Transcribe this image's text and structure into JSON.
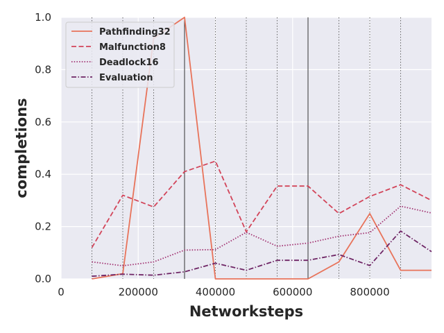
{
  "chart_data": {
    "type": "line",
    "title": "",
    "xlabel": "Networksteps",
    "ylabel": "completions",
    "xlim": [
      0,
      960000
    ],
    "ylim": [
      0,
      1.0
    ],
    "xticks": [
      0,
      200000,
      400000,
      600000,
      800000
    ],
    "xtick_labels": [
      "0",
      "200000",
      "400000",
      "600000",
      "800000"
    ],
    "yticks": [
      0.0,
      0.2,
      0.4,
      0.6,
      0.8,
      1.0
    ],
    "ytick_labels": [
      "0.0",
      "0.2",
      "0.4",
      "0.6",
      "0.8",
      "1.0"
    ],
    "grid": true,
    "legend_position": "top-left",
    "vlines_dotted": [
      80000,
      160000,
      240000,
      320000,
      400000,
      480000,
      560000,
      640000,
      720000,
      800000,
      880000
    ],
    "vlines_solid": [
      320000,
      640000
    ],
    "series": [
      {
        "name": "Pathfinding32",
        "color": "#e8735a",
        "dash": "solid",
        "x": [
          80000,
          160000,
          240000,
          320000,
          400000,
          480000,
          560000,
          640000,
          720000,
          800000,
          880000,
          960000
        ],
        "values": [
          0.0,
          0.02,
          0.92,
          1.0,
          0.0,
          0.0,
          0.0,
          0.0,
          0.065,
          0.25,
          0.033,
          0.033
        ]
      },
      {
        "name": "Malfunction8",
        "color": "#d24459",
        "dash": "dashed",
        "x": [
          80000,
          160000,
          240000,
          320000,
          400000,
          480000,
          560000,
          640000,
          720000,
          800000,
          880000,
          960000
        ],
        "values": [
          0.12,
          0.32,
          0.275,
          0.41,
          0.45,
          0.18,
          0.355,
          0.355,
          0.25,
          0.315,
          0.36,
          0.3
        ]
      },
      {
        "name": "Deadlock16",
        "color": "#a13070",
        "dash": "dotted",
        "x": [
          80000,
          160000,
          240000,
          320000,
          400000,
          480000,
          560000,
          640000,
          720000,
          800000,
          880000,
          960000
        ],
        "values": [
          0.065,
          0.05,
          0.065,
          0.11,
          0.112,
          0.178,
          0.125,
          0.137,
          0.163,
          0.177,
          0.278,
          0.252
        ]
      },
      {
        "name": "Evaluation",
        "color": "#6e2565",
        "dash": "dashdot",
        "x": [
          80000,
          160000,
          240000,
          320000,
          400000,
          480000,
          560000,
          640000,
          720000,
          800000,
          880000,
          960000
        ],
        "values": [
          0.01,
          0.018,
          0.014,
          0.027,
          0.06,
          0.033,
          0.071,
          0.071,
          0.093,
          0.051,
          0.183,
          0.104
        ]
      }
    ]
  }
}
